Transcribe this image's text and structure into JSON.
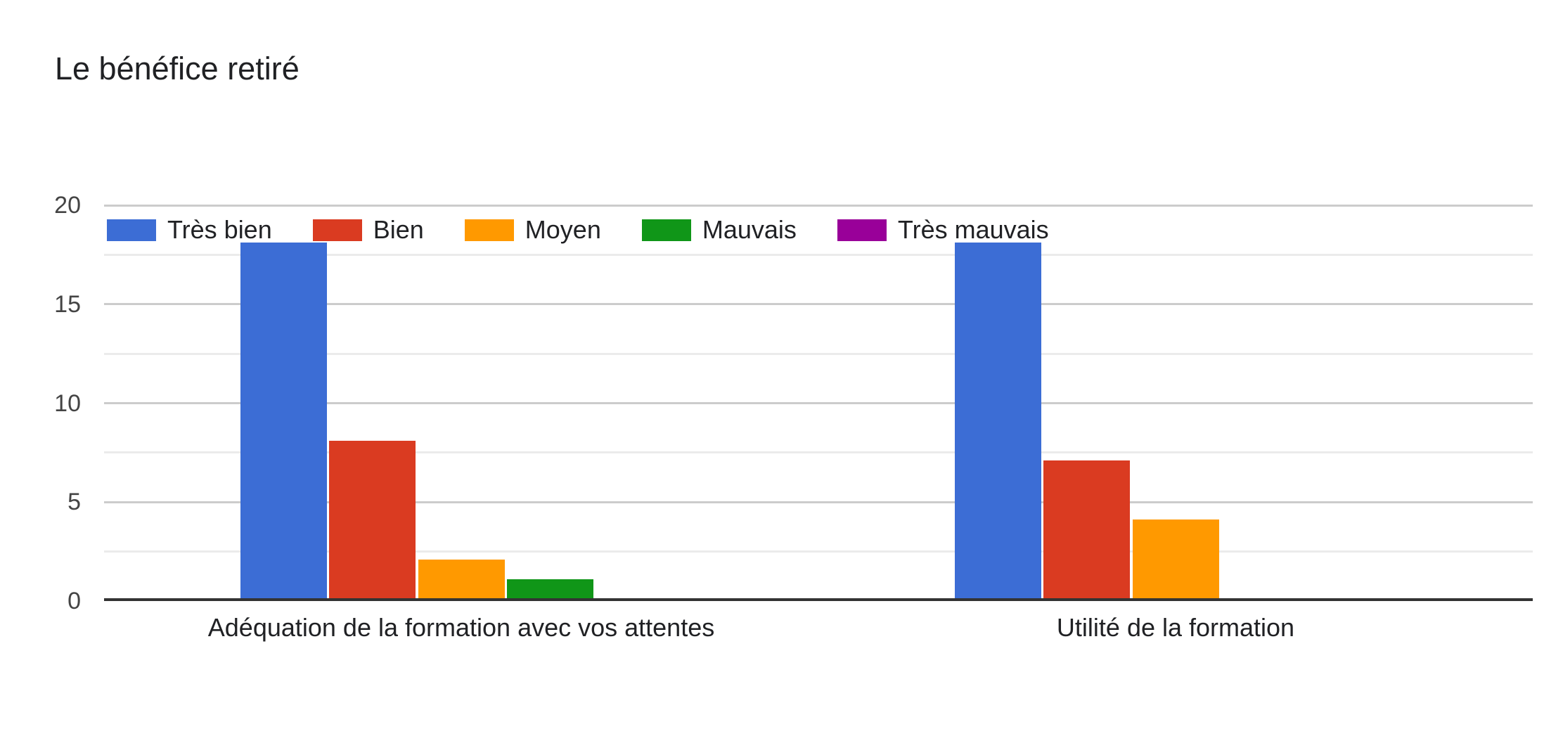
{
  "title": "Le bénéfice retiré",
  "colors": {
    "very_good": "#3C6DD5",
    "good": "#DA3B21",
    "medium": "#FF9900",
    "bad": "#109618",
    "very_bad": "#990099",
    "axis_line": "#333333",
    "gridline_major": "#cccccc",
    "gridline_minor": "#ebebeb",
    "title_text": "#202124",
    "tick_text": "#444444"
  },
  "chart_data": {
    "type": "bar",
    "title": "Le bénéfice retiré",
    "categories": [
      "Adéquation de la formation avec vos attentes",
      "Utilité de la formation"
    ],
    "series": [
      {
        "name": "Très bien",
        "color": "#3C6DD5",
        "values": [
          18,
          18
        ]
      },
      {
        "name": "Bien",
        "color": "#DA3B21",
        "values": [
          8,
          7
        ]
      },
      {
        "name": "Moyen",
        "color": "#FF9900",
        "values": [
          2,
          4
        ]
      },
      {
        "name": "Mauvais",
        "color": "#109618",
        "values": [
          1,
          0
        ]
      },
      {
        "name": "Très mauvais",
        "color": "#990099",
        "values": [
          0,
          0
        ]
      }
    ],
    "ylim": [
      0,
      20
    ],
    "yticks": [
      0,
      5,
      10,
      15,
      20
    ],
    "minor_gridlines": [
      2.5,
      7.5,
      12.5,
      17.5
    ],
    "grid": "horizontal, major and minor lines",
    "legend_position": "top-left inside plot area",
    "xlabel": "",
    "ylabel": ""
  }
}
